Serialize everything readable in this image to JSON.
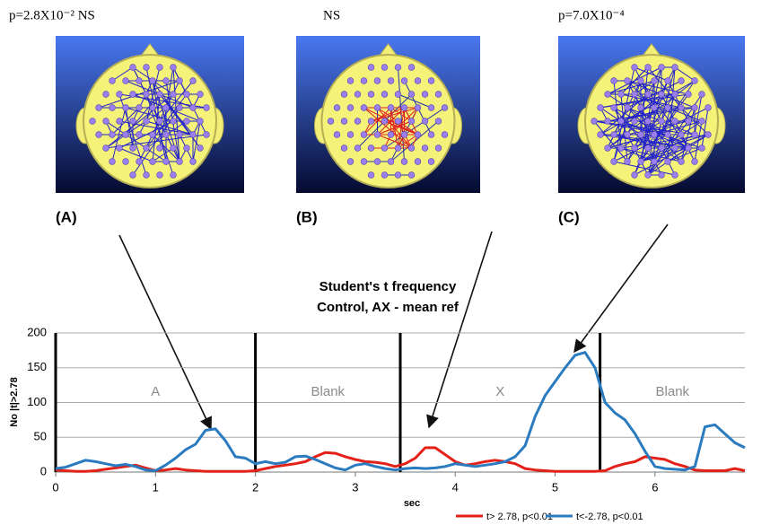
{
  "panels": [
    {
      "label": "(A)",
      "stat": "p=2.8X10⁻² NS"
    },
    {
      "label": "(B)",
      "stat": "NS"
    },
    {
      "label": "(C)",
      "stat": "p=7.0X10⁻⁴"
    }
  ],
  "chart_data": {
    "type": "line",
    "title": "Student's t frequency",
    "subtitle": "Control, AX - mean ref",
    "x_label": "sec",
    "y_label": "No |t|>2.78",
    "xlim": [
      0,
      6.9
    ],
    "ylim": [
      0,
      200
    ],
    "xticks": [
      0,
      1,
      2,
      3,
      4,
      5,
      6
    ],
    "yticks": [
      0,
      50,
      100,
      150,
      200
    ],
    "grid": true,
    "legend": "bottom",
    "phase_boundaries": [
      0,
      2,
      3.45,
      5.45
    ],
    "annotations": [
      "A",
      "Blank",
      "X",
      "Blank"
    ],
    "x": [
      0,
      0.1,
      0.2,
      0.3,
      0.4,
      0.5,
      0.6,
      0.7,
      0.8,
      0.9,
      1,
      1.1,
      1.2,
      1.3,
      1.4,
      1.5,
      1.6,
      1.7,
      1.8,
      1.9,
      2,
      2.1,
      2.2,
      2.3,
      2.4,
      2.5,
      2.6,
      2.7,
      2.8,
      2.9,
      3,
      3.1,
      3.2,
      3.3,
      3.4,
      3.5,
      3.6,
      3.7,
      3.8,
      3.9,
      4,
      4.1,
      4.2,
      4.3,
      4.4,
      4.5,
      4.6,
      4.7,
      4.8,
      4.9,
      5,
      5.1,
      5.2,
      5.3,
      5.4,
      5.5,
      5.6,
      5.7,
      5.8,
      5.9,
      6,
      6.1,
      6.2,
      6.3,
      6.4,
      6.5,
      6.6,
      6.7,
      6.8,
      6.9
    ],
    "series": [
      {
        "name": "t> 2.78, p<0.01",
        "color": "#e32119",
        "values": [
          3,
          2,
          1,
          1,
          2,
          4,
          6,
          8,
          10,
          6,
          2,
          3,
          5,
          3,
          2,
          1,
          1,
          1,
          1,
          1,
          2,
          5,
          8,
          10,
          12,
          15,
          22,
          28,
          27,
          22,
          18,
          15,
          14,
          12,
          8,
          12,
          20,
          35,
          35,
          25,
          15,
          10,
          12,
          15,
          17,
          15,
          12,
          5,
          3,
          2,
          1,
          1,
          1,
          1,
          1,
          2,
          8,
          12,
          15,
          22,
          20,
          18,
          12,
          8,
          3,
          2,
          2,
          2,
          5,
          2
        ]
      },
      {
        "name": "t<-2.78, p<0.01",
        "color": "#2a7bbf",
        "values": [
          5,
          7,
          12,
          17,
          15,
          12,
          9,
          11,
          8,
          3,
          2,
          10,
          20,
          32,
          40,
          60,
          62,
          45,
          22,
          20,
          12,
          15,
          12,
          14,
          22,
          23,
          18,
          12,
          6,
          3,
          10,
          12,
          8,
          5,
          3,
          5,
          6,
          5,
          6,
          8,
          12,
          10,
          8,
          10,
          12,
          15,
          22,
          38,
          80,
          110,
          130,
          150,
          168,
          172,
          150,
          100,
          85,
          75,
          55,
          30,
          8,
          5,
          4,
          3,
          8,
          65,
          68,
          55,
          42,
          35
        ]
      }
    ]
  }
}
